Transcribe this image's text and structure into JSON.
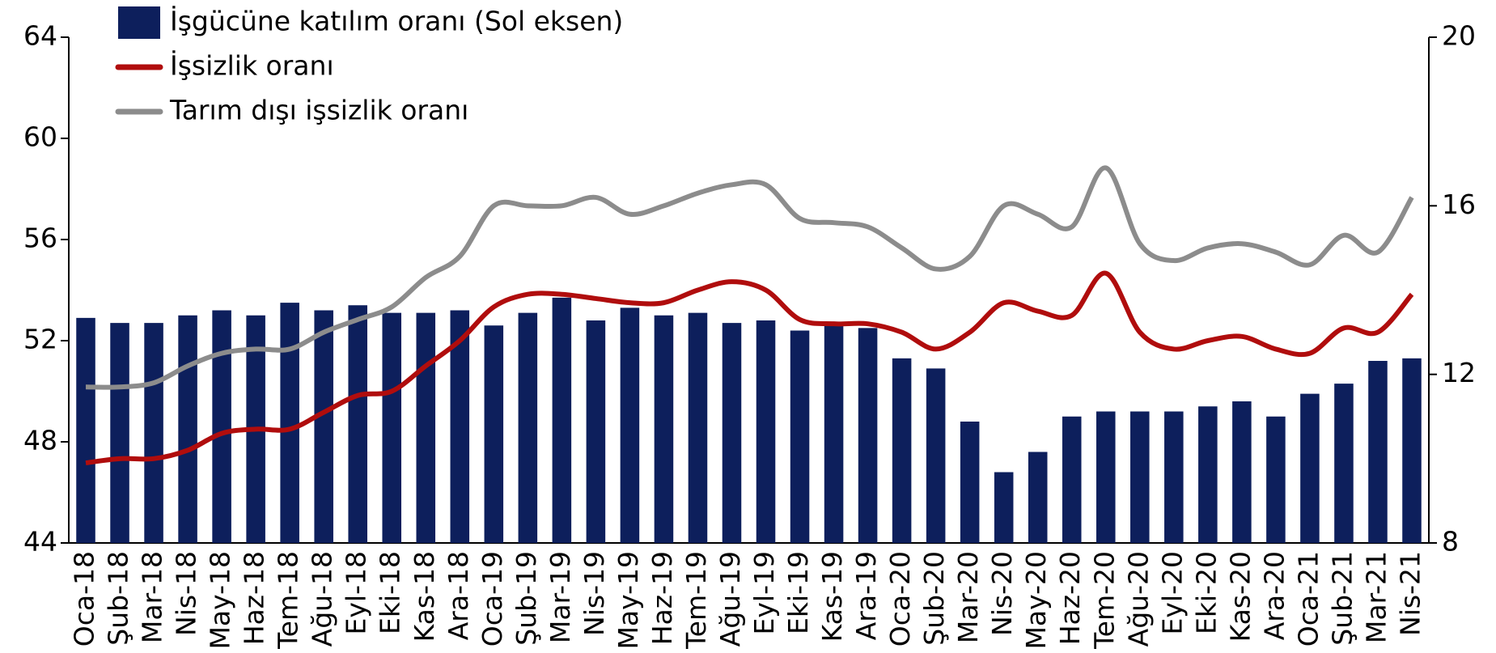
{
  "chart_data": {
    "type": "bar-line",
    "categories": [
      "Oca-18",
      "Şub-18",
      "Mar-18",
      "Nis-18",
      "May-18",
      "Haz-18",
      "Tem-18",
      "Ağu-18",
      "Eyl-18",
      "Eki-18",
      "Kas-18",
      "Ara-18",
      "Oca-19",
      "Şub-19",
      "Mar-19",
      "Nis-19",
      "May-19",
      "Haz-19",
      "Tem-19",
      "Ağu-19",
      "Eyl-19",
      "Eki-19",
      "Kas-19",
      "Ara-19",
      "Oca-20",
      "Şub-20",
      "Mar-20",
      "Nis-20",
      "May-20",
      "Haz-20",
      "Tem-20",
      "Ağu-20",
      "Eyl-20",
      "Eki-20",
      "Kas-20",
      "Ara-20",
      "Oca-21",
      "Şub-21",
      "Mar-21",
      "Nis-21"
    ],
    "series": [
      {
        "name": "İşgücüne katılım oranı (Sol eksen)",
        "color": "#0d1f5c",
        "type": "bar",
        "axis": "y",
        "values": [
          52.9,
          52.7,
          52.7,
          53.0,
          53.2,
          53.0,
          53.5,
          53.2,
          53.4,
          53.1,
          53.1,
          53.2,
          52.6,
          53.1,
          53.7,
          52.8,
          53.3,
          53.0,
          53.1,
          52.7,
          52.8,
          52.4,
          52.6,
          52.5,
          51.3,
          50.9,
          48.8,
          46.8,
          47.6,
          49.0,
          49.2,
          49.2,
          49.2,
          49.4,
          49.6,
          49.0,
          49.9,
          50.3,
          51.2,
          51.3
        ]
      },
      {
        "name": "İşsizlik oranı",
        "color": "#b00d0d",
        "type": "line",
        "axis": "y2",
        "values": [
          9.9,
          10.0,
          10.0,
          10.2,
          10.6,
          10.7,
          10.7,
          11.1,
          11.5,
          11.6,
          12.2,
          12.8,
          13.6,
          13.9,
          13.9,
          13.8,
          13.7,
          13.7,
          14.0,
          14.2,
          14.0,
          13.3,
          13.2,
          13.2,
          13.0,
          12.6,
          13.0,
          13.7,
          13.5,
          13.4,
          14.4,
          13.0,
          12.6,
          12.8,
          12.9,
          12.6,
          12.5,
          13.1,
          13.0,
          13.9
        ]
      },
      {
        "name": "Tarım dışı işsizlik oranı",
        "color": "#8c8c8c",
        "type": "line",
        "axis": "y2",
        "values": [
          11.7,
          11.7,
          11.8,
          12.2,
          12.5,
          12.6,
          12.6,
          13.0,
          13.3,
          13.6,
          14.3,
          14.8,
          16.0,
          16.0,
          16.0,
          16.2,
          15.8,
          16.0,
          16.3,
          16.5,
          16.5,
          15.7,
          15.6,
          15.5,
          15.0,
          14.5,
          14.8,
          16.0,
          15.8,
          15.5,
          16.9,
          15.1,
          14.7,
          15.0,
          15.1,
          14.9,
          14.6,
          15.3,
          14.9,
          16.2
        ]
      }
    ],
    "ylim": [
      44,
      64
    ],
    "yticks": [
      44,
      48,
      52,
      56,
      60,
      64
    ],
    "y2lim": [
      8,
      20
    ],
    "y2ticks": [
      8,
      12,
      16,
      20
    ],
    "legend": "top-left"
  }
}
